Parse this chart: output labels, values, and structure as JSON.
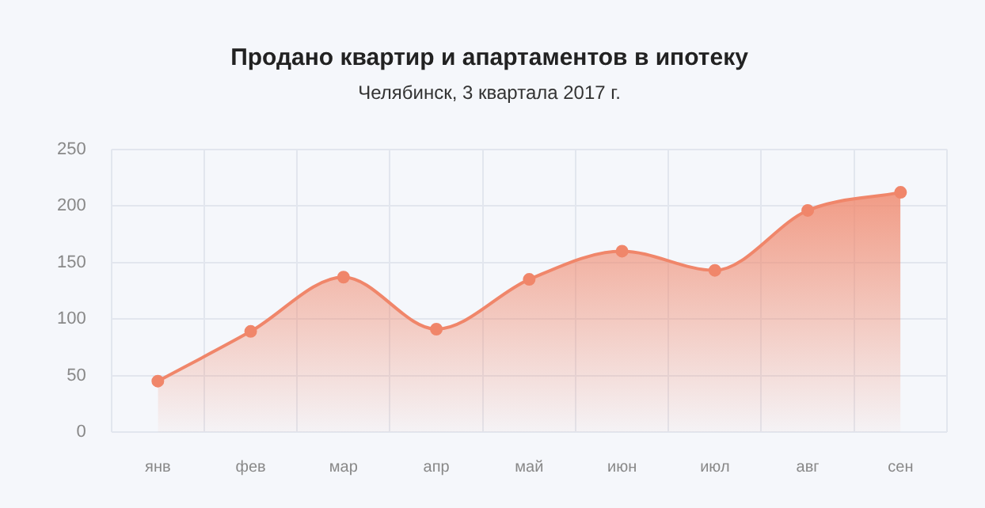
{
  "chart_data": {
    "type": "area",
    "title": "Продано квартир и апартаментов в ипотеку",
    "subtitle": "Челябинск, 3 квартала 2017 г.",
    "categories": [
      "янв",
      "фев",
      "мар",
      "апр",
      "май",
      "июн",
      "июл",
      "авг",
      "сен"
    ],
    "series": [
      {
        "color": "#f0866a",
        "values": [
          45,
          89,
          137,
          91,
          135,
          160,
          143,
          196,
          212
        ]
      }
    ],
    "ylim": [
      0,
      250
    ],
    "yticks": [
      0,
      50,
      100,
      150,
      200,
      250
    ],
    "grid": true,
    "legend": false,
    "marker": "circle",
    "line_style": "solid"
  }
}
